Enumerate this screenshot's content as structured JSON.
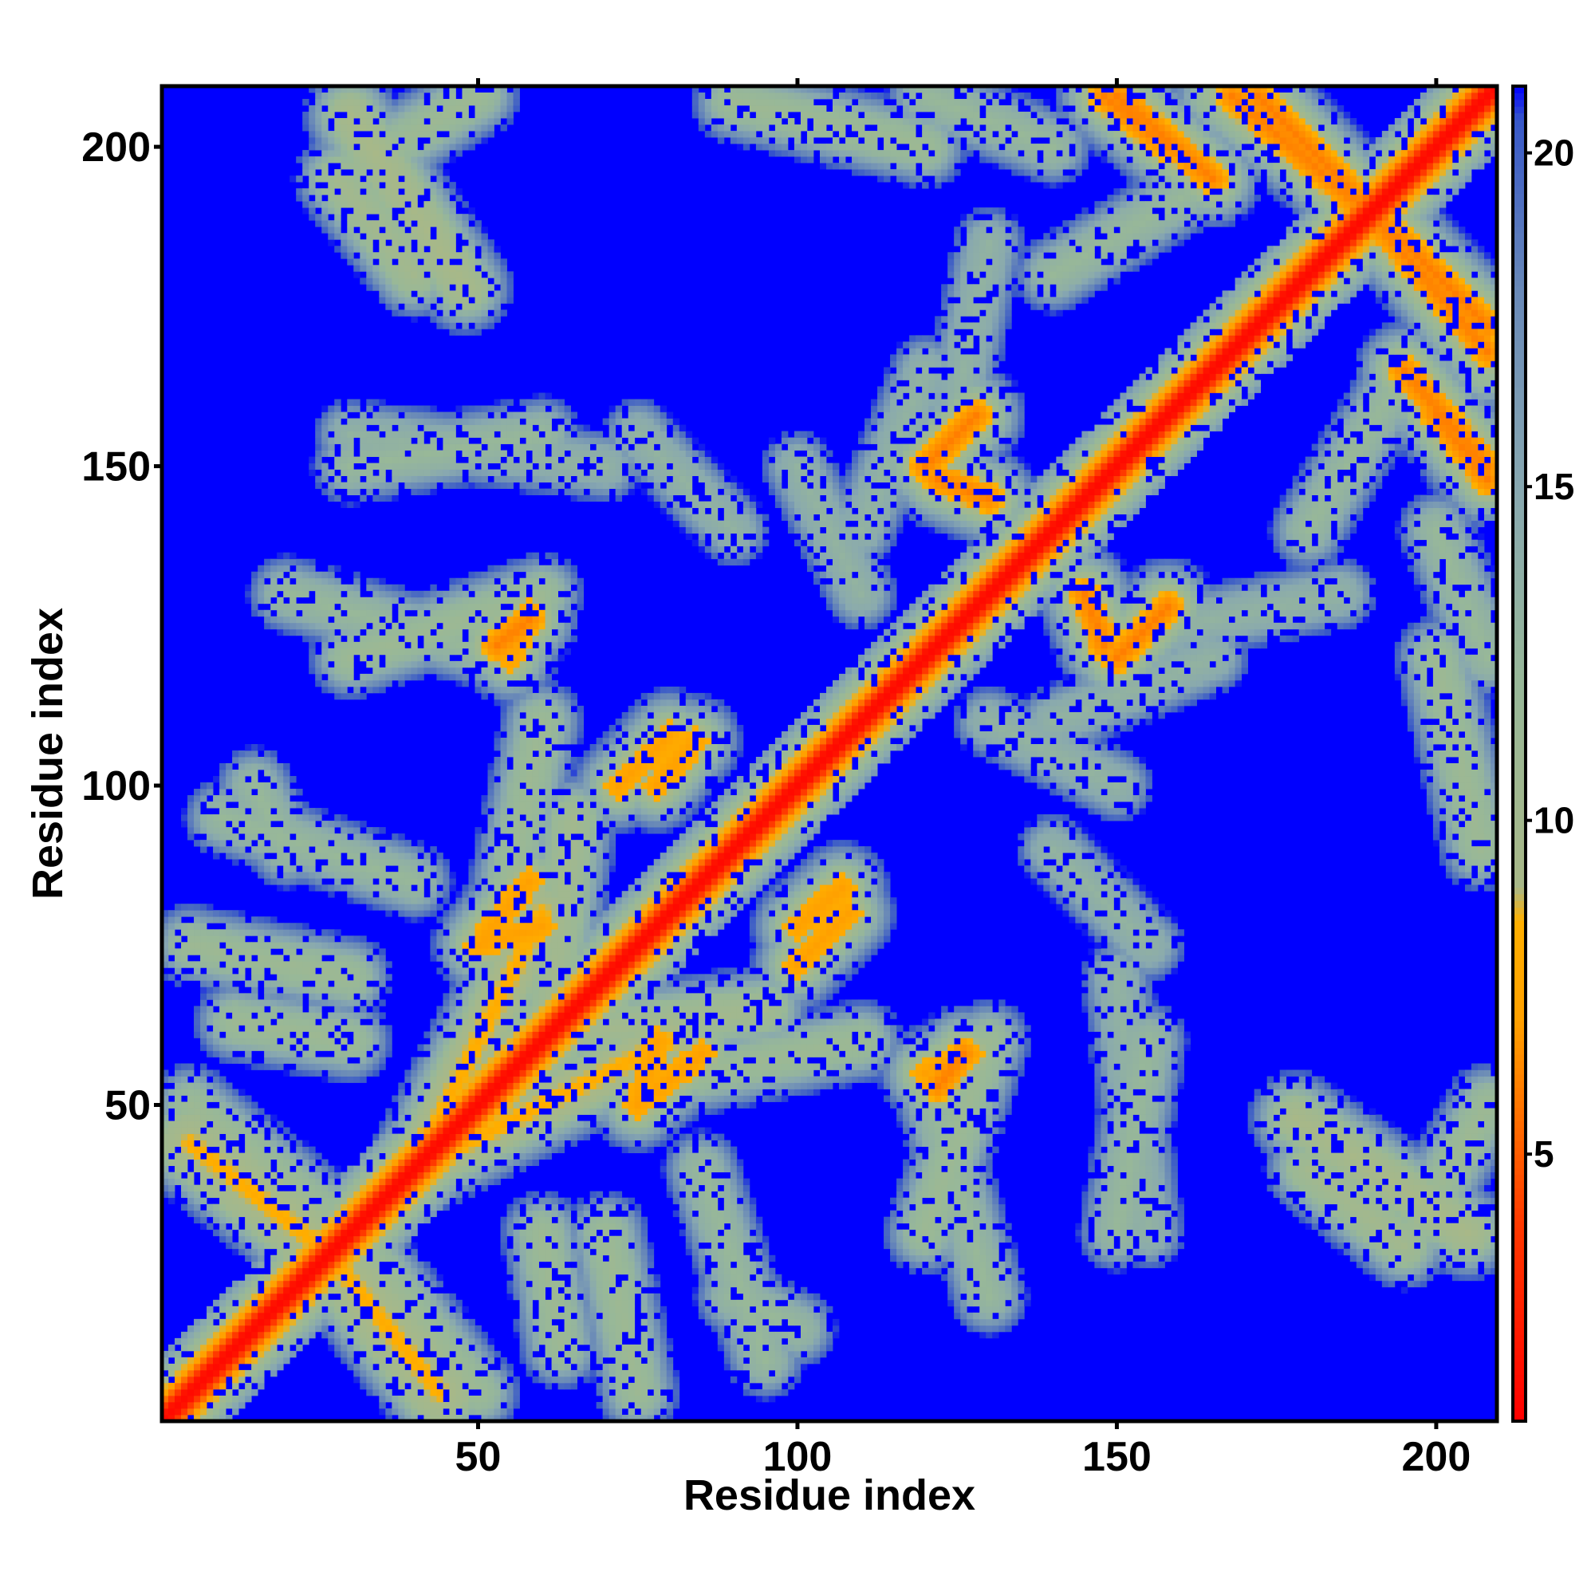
{
  "chart_data": {
    "type": "heatmap",
    "title": "",
    "xlabel": "Residue index",
    "ylabel": "Residue index",
    "n_residues": 209,
    "xlim": [
      1,
      209
    ],
    "ylim": [
      1,
      209
    ],
    "x_ticks": [
      50,
      100,
      150,
      200
    ],
    "y_ticks": [
      50,
      100,
      150,
      200
    ],
    "colorbar": {
      "range": [
        1,
        21
      ],
      "ticks": [
        5,
        10,
        15,
        20
      ],
      "stops": [
        {
          "value": 1,
          "color": "#ff0000"
        },
        {
          "value": 4,
          "color": "#ff3a00"
        },
        {
          "value": 7,
          "color": "#ffa000"
        },
        {
          "value": 8.5,
          "color": "#ffb000"
        },
        {
          "value": 9,
          "color": "#a8b888"
        },
        {
          "value": 12,
          "color": "#98b898"
        },
        {
          "value": 15,
          "color": "#88a8b0"
        },
        {
          "value": 18,
          "color": "#6888b8"
        },
        {
          "value": 20.5,
          "color": "#3858c8"
        },
        {
          "value": 21,
          "color": "#0000ff"
        }
      ]
    },
    "background_color": "#0000ff",
    "value_description": "pairwise residue distance (diagonal = minimum)",
    "contact_segments": [
      {
        "from": [
          1,
          1
        ],
        "to": [
          209,
          209
        ],
        "value": 1.5,
        "width": 1.2
      },
      {
        "from": [
          5,
          44
        ],
        "to": [
          25,
          28
        ],
        "value": 8,
        "width": 4
      },
      {
        "from": [
          30,
          205
        ],
        "to": [
          48,
          178
        ],
        "value": 9,
        "width": 3
      },
      {
        "from": [
          90,
          207
        ],
        "to": [
          120,
          200
        ],
        "value": 11,
        "width": 3
      },
      {
        "from": [
          150,
          208
        ],
        "to": [
          165,
          195
        ],
        "value": 6,
        "width": 2
      },
      {
        "from": [
          172,
          208
        ],
        "to": [
          185,
          195
        ],
        "value": 6,
        "width": 2
      },
      {
        "from": [
          185,
          195
        ],
        "to": [
          208,
          168
        ],
        "value": 6,
        "width": 2
      },
      {
        "from": [
          200,
          158
        ],
        "to": [
          208,
          148
        ],
        "value": 6,
        "width": 2
      },
      {
        "from": [
          130,
          145
        ],
        "to": [
          122,
          148
        ],
        "value": 6,
        "width": 2
      },
      {
        "from": [
          150,
          120
        ],
        "to": [
          158,
          128
        ],
        "value": 6,
        "width": 2
      },
      {
        "from": [
          53,
          122
        ],
        "to": [
          58,
          126
        ],
        "value": 6,
        "width": 2
      },
      {
        "from": [
          72,
          100
        ],
        "to": [
          80,
          108
        ],
        "value": 7,
        "width": 2
      },
      {
        "from": [
          40,
          40
        ],
        "to": [
          60,
          80
        ],
        "value": 8,
        "width": 3
      },
      {
        "from": [
          75,
          50
        ],
        "to": [
          85,
          58
        ],
        "value": 7,
        "width": 2
      },
      {
        "from": [
          120,
          55
        ],
        "to": [
          127,
          58
        ],
        "value": 7,
        "width": 2
      },
      {
        "from": [
          100,
          78
        ],
        "to": [
          107,
          84
        ],
        "value": 7,
        "width": 2
      },
      {
        "from": [
          50,
          75
        ],
        "to": [
          60,
          78
        ],
        "value": 7,
        "width": 2
      },
      {
        "from": [
          60,
          30
        ],
        "to": [
          63,
          12
        ],
        "value": 11,
        "width": 3
      },
      {
        "from": [
          30,
          30
        ],
        "to": [
          50,
          5
        ],
        "value": 11,
        "width": 3
      },
      {
        "from": [
          180,
          40
        ],
        "to": [
          195,
          28
        ],
        "value": 10,
        "width": 3
      },
      {
        "from": [
          195,
          28
        ],
        "to": [
          208,
          50
        ],
        "value": 11,
        "width": 3
      },
      {
        "from": [
          120,
          30
        ],
        "to": [
          130,
          60
        ],
        "value": 11,
        "width": 3
      },
      {
        "from": [
          150,
          30
        ],
        "to": [
          155,
          60
        ],
        "value": 12,
        "width": 3
      },
      {
        "from": [
          5,
          75
        ],
        "to": [
          30,
          70
        ],
        "value": 11,
        "width": 3
      },
      {
        "from": [
          20,
          130
        ],
        "to": [
          55,
          120
        ],
        "value": 12,
        "width": 3
      },
      {
        "from": [
          30,
          155
        ],
        "to": [
          70,
          150
        ],
        "value": 13,
        "width": 3
      },
      {
        "from": [
          10,
          95
        ],
        "to": [
          40,
          85
        ],
        "value": 12,
        "width": 3
      },
      {
        "from": [
          110,
          140
        ],
        "to": [
          120,
          165
        ],
        "value": 13,
        "width": 3
      },
      {
        "from": [
          140,
          180
        ],
        "to": [
          165,
          195
        ],
        "value": 12,
        "width": 3
      },
      {
        "from": [
          200,
          175
        ],
        "to": [
          208,
          165
        ],
        "value": 11,
        "width": 3
      },
      {
        "from": [
          200,
          140
        ],
        "to": [
          208,
          120
        ],
        "value": 12,
        "width": 3
      },
      {
        "from": [
          140,
          90
        ],
        "to": [
          155,
          75
        ],
        "value": 13,
        "width": 3
      },
      {
        "from": [
          160,
          125
        ],
        "to": [
          185,
          130
        ],
        "value": 13,
        "width": 3
      },
      {
        "from": [
          130,
          110
        ],
        "to": [
          150,
          100
        ],
        "value": 13,
        "width": 3
      },
      {
        "from": [
          85,
          55
        ],
        "to": [
          110,
          60
        ],
        "value": 11,
        "width": 3
      },
      {
        "from": [
          90,
          20
        ],
        "to": [
          100,
          15
        ],
        "value": 12,
        "width": 3
      },
      {
        "from": [
          60,
          55
        ],
        "to": [
          65,
          95
        ],
        "value": 10,
        "width": 3
      }
    ]
  }
}
